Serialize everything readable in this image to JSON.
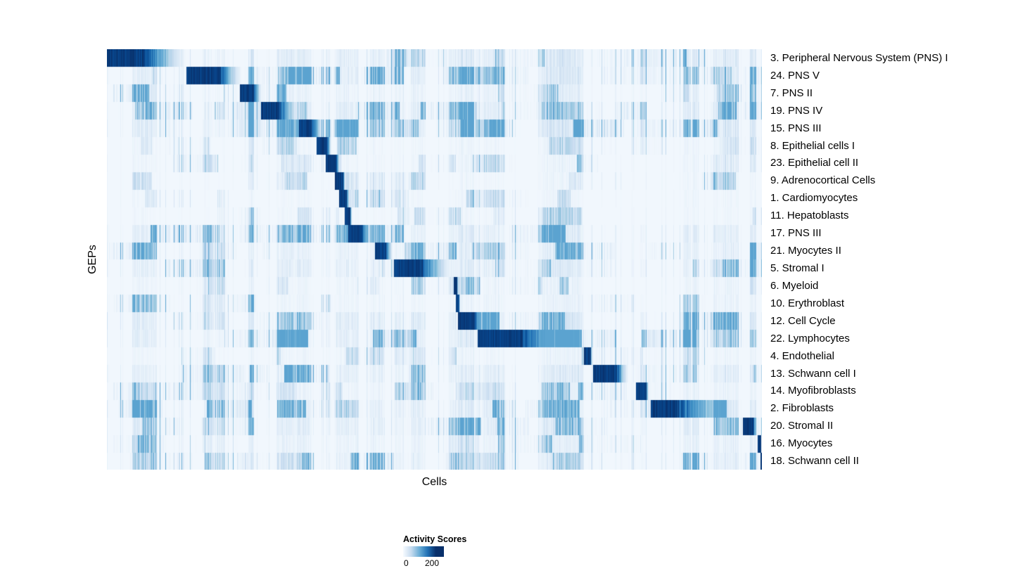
{
  "chart_data": {
    "type": "heatmap",
    "title": "",
    "xlabel": "Cells",
    "ylabel": "GEPs",
    "legend": {
      "title": "Activity Scores",
      "min_label": "0",
      "max_label": "200",
      "min": 0,
      "max": 200,
      "position": "bottom"
    },
    "colors": {
      "scale_name": "blues",
      "low": "#f7fbff",
      "high": "#08306b",
      "stops": [
        "#f7fbff",
        "#deebf7",
        "#c6dbef",
        "#9ecae1",
        "#6baed6",
        "#4292c6",
        "#2171b5",
        "#08519c",
        "#08306b"
      ]
    },
    "grid": false,
    "n_rows": 24,
    "rows": [
      {
        "label": "3. Peripheral Nervous System (PNS) I",
        "block_start": 0.0,
        "block_end": 0.058,
        "fade_end": 0.125,
        "noise_level": 1.3
      },
      {
        "label": "24. PNS V",
        "block_start": 0.121,
        "block_end": 0.172,
        "fade_end": 0.208,
        "noise_level": 1.3
      },
      {
        "label": "7. PNS II",
        "block_start": 0.203,
        "block_end": 0.224,
        "fade_end": 0.237,
        "noise_level": 0.9
      },
      {
        "label": "19. PNS IV",
        "block_start": 0.235,
        "block_end": 0.263,
        "fade_end": 0.293,
        "noise_level": 1.4
      },
      {
        "label": "15. PNS III",
        "block_start": 0.293,
        "block_end": 0.312,
        "fade_end": 0.332,
        "noise_level": 1.5
      },
      {
        "label": "8. Epithelial cells I",
        "block_start": 0.32,
        "block_end": 0.336,
        "fade_end": 0.343,
        "noise_level": 0.6
      },
      {
        "label": "23. Epithelial cell II",
        "block_start": 0.333,
        "block_end": 0.35,
        "fade_end": 0.356,
        "noise_level": 0.6
      },
      {
        "label": "9. Adrenocortical Cells",
        "block_start": 0.348,
        "block_end": 0.36,
        "fade_end": 0.364,
        "noise_level": 0.5
      },
      {
        "label": "1. Cardiomyocytes",
        "block_start": 0.354,
        "block_end": 0.366,
        "fade_end": 0.37,
        "noise_level": 0.5
      },
      {
        "label": "11. Hepatoblasts",
        "block_start": 0.362,
        "block_end": 0.371,
        "fade_end": 0.374,
        "noise_level": 0.5
      },
      {
        "label": "17. PNS III",
        "block_start": 0.368,
        "block_end": 0.388,
        "fade_end": 0.408,
        "noise_level": 1.2
      },
      {
        "label": "21. Myocytes II",
        "block_start": 0.409,
        "block_end": 0.426,
        "fade_end": 0.437,
        "noise_level": 1.0
      },
      {
        "label": "5. Stromal I",
        "block_start": 0.438,
        "block_end": 0.479,
        "fade_end": 0.53,
        "noise_level": 1.2
      },
      {
        "label": "6. Myeloid",
        "block_start": 0.529,
        "block_end": 0.534,
        "fade_end": 0.536,
        "noise_level": 0.7
      },
      {
        "label": "10. Erythroblast",
        "block_start": 0.532,
        "block_end": 0.537,
        "fade_end": 0.539,
        "noise_level": 0.7
      },
      {
        "label": "12. Cell Cycle",
        "block_start": 0.535,
        "block_end": 0.561,
        "fade_end": 0.578,
        "noise_level": 1.5
      },
      {
        "label": "22. Lymphocytes",
        "block_start": 0.565,
        "block_end": 0.634,
        "fade_end": 0.74,
        "noise_level": 1.3
      },
      {
        "label": "4. Endothelial",
        "block_start": 0.728,
        "block_end": 0.738,
        "fade_end": 0.741,
        "noise_level": 0.6
      },
      {
        "label": "13. Schwann cell I",
        "block_start": 0.742,
        "block_end": 0.778,
        "fade_end": 0.797,
        "noise_level": 1.2
      },
      {
        "label": "14. Myofibroblasts",
        "block_start": 0.807,
        "block_end": 0.823,
        "fade_end": 0.827,
        "noise_level": 0.8
      },
      {
        "label": "2. Fibroblasts",
        "block_start": 0.83,
        "block_end": 0.869,
        "fade_end": 0.976,
        "noise_level": 1.3
      },
      {
        "label": "20. Stromal II",
        "block_start": 0.97,
        "block_end": 0.987,
        "fade_end": 0.99,
        "noise_level": 1.3
      },
      {
        "label": "16. Myocytes",
        "block_start": 0.993,
        "block_end": 0.998,
        "fade_end": 0.999,
        "noise_level": 0.9
      },
      {
        "label": "18. Schwann cell II",
        "block_start": 0.997,
        "block_end": 1.0,
        "fade_end": 1.0,
        "noise_level": 1.1
      }
    ]
  }
}
